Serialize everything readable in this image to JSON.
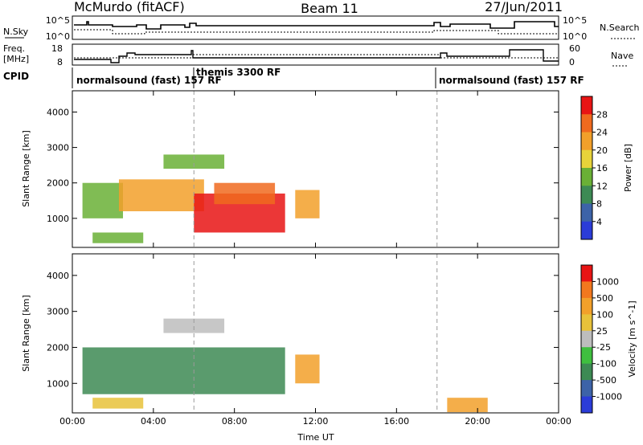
{
  "header": {
    "station": "McMurdo (fitACF)",
    "beam": "Beam 11",
    "date": "27/Jun/2011"
  },
  "top_panels": {
    "nsky_label": "N.Sky",
    "nsearch_label": "N.Search",
    "noise_ticks": [
      "10^5",
      "10^0"
    ],
    "freq_label": "Freq.",
    "freq_unit": "[MHz]",
    "freq_ticks": [
      "18",
      "8"
    ],
    "nave_label": "Nave",
    "nave_ticks": [
      "60",
      "0"
    ],
    "cpid_label": "CPID"
  },
  "modes": [
    {
      "name": "normalsound (fast) 157 RF",
      "start_hour": 0
    },
    {
      "name": "themis 3300 RF",
      "start_hour": 6
    },
    {
      "name": "normalsound (fast) 157 RF",
      "start_hour": 18
    }
  ],
  "colors": {
    "power": [
      "#2b3cd8",
      "#3d63a8",
      "#3d8a54",
      "#6ab036",
      "#e8d33a",
      "#f2a02a",
      "#f06a1e",
      "#e81414"
    ],
    "velocity": [
      "#e81414",
      "#f2781e",
      "#f2a02a",
      "#e8c23a",
      "#bdbdbd",
      "#3fbf3f",
      "#3d8a54",
      "#3d63a8",
      "#2b3cd8"
    ],
    "noise_line": "#000000"
  },
  "chart_data": [
    {
      "type": "heatmap",
      "name": "power-panel",
      "xlabel": "",
      "ylabel": "Slant Range [km]",
      "x_ticks": [
        "00:00",
        "04:00",
        "08:00",
        "12:00",
        "16:00",
        "20:00",
        "00:00"
      ],
      "x_range_hours": [
        0,
        24
      ],
      "y_ticks": [
        1000,
        2000,
        3000,
        4000
      ],
      "ylim": [
        180,
        4600
      ],
      "colorbar_label": "Power [dB]",
      "colorbar_ticks": [
        "4",
        "8",
        "12",
        "16",
        "20",
        "24",
        "28"
      ],
      "regions": [
        {
          "t0": 0.5,
          "t1": 2.5,
          "r0": 1000,
          "r1": 2000,
          "level": 3
        },
        {
          "t0": 2.3,
          "t1": 6.5,
          "r0": 1200,
          "r1": 2100,
          "level": 5
        },
        {
          "t0": 6.0,
          "t1": 10.5,
          "r0": 600,
          "r1": 1700,
          "level": 7
        },
        {
          "t0": 7.0,
          "t1": 10.0,
          "r0": 1400,
          "r1": 2000,
          "level": 6
        },
        {
          "t0": 4.5,
          "t1": 7.5,
          "r0": 2400,
          "r1": 2800,
          "level": 3
        },
        {
          "t0": 11.0,
          "t1": 12.2,
          "r0": 1000,
          "r1": 1800,
          "level": 5
        },
        {
          "t0": 1.0,
          "t1": 3.5,
          "r0": 300,
          "r1": 600,
          "level": 3
        }
      ]
    },
    {
      "type": "heatmap",
      "name": "velocity-panel",
      "xlabel": "Time UT",
      "ylabel": "Slant Range [km]",
      "x_ticks": [
        "00:00",
        "04:00",
        "08:00",
        "12:00",
        "16:00",
        "20:00",
        "00:00"
      ],
      "x_range_hours": [
        0,
        24
      ],
      "y_ticks": [
        1000,
        2000,
        3000,
        4000
      ],
      "ylim": [
        180,
        4600
      ],
      "colorbar_label": "Velocity [m s^-1]",
      "colorbar_ticks": [
        "1000",
        "500",
        "100",
        "25",
        "-25",
        "-100",
        "-500",
        "-1000"
      ],
      "regions": [
        {
          "t0": 0.5,
          "t1": 10.5,
          "r0": 700,
          "r1": 2000,
          "level": 6
        },
        {
          "t0": 4.5,
          "t1": 7.5,
          "r0": 2400,
          "r1": 2800,
          "level": 4
        },
        {
          "t0": 11.0,
          "t1": 12.2,
          "r0": 1000,
          "r1": 1800,
          "level": 2
        },
        {
          "t0": 1.0,
          "t1": 3.5,
          "r0": 300,
          "r1": 600,
          "level": 3
        },
        {
          "t0": 18.5,
          "t1": 20.5,
          "r0": 200,
          "r1": 600,
          "level": 2
        }
      ]
    }
  ]
}
